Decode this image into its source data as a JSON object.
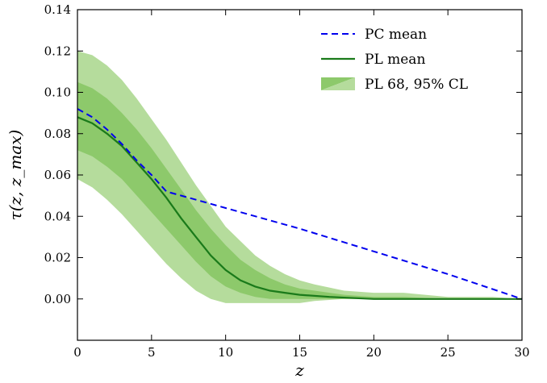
{
  "chart_data": {
    "type": "line",
    "xlabel": "z",
    "ylabel": "τ(z, z_max)",
    "xlim": [
      0,
      30
    ],
    "ylim": [
      -0.02,
      0.14
    ],
    "x_ticks": [
      "0",
      "5",
      "10",
      "15",
      "20",
      "25",
      "30"
    ],
    "y_ticks": [
      "0.00",
      "0.02",
      "0.04",
      "0.06",
      "0.08",
      "0.10",
      "0.12",
      "0.14"
    ],
    "legend_position": "top-right",
    "grid": false,
    "series": [
      {
        "name": "PC mean",
        "style": "dashed",
        "color": "#0000ee",
        "x": [
          0,
          1,
          2,
          3,
          4,
          5,
          6,
          7,
          8,
          10,
          15,
          20,
          25,
          30
        ],
        "y": [
          0.092,
          0.088,
          0.082,
          0.075,
          0.067,
          0.06,
          0.052,
          0.05,
          0.048,
          0.044,
          0.034,
          0.023,
          0.012,
          0.0
        ]
      },
      {
        "name": "PL mean",
        "style": "solid",
        "color": "#1a7a1a",
        "x": [
          0,
          1,
          2,
          3,
          4,
          5,
          6,
          7,
          8,
          9,
          10,
          11,
          12,
          13,
          14,
          15,
          17,
          20,
          25,
          30
        ],
        "y": [
          0.088,
          0.085,
          0.08,
          0.074,
          0.066,
          0.058,
          0.049,
          0.039,
          0.03,
          0.021,
          0.014,
          0.009,
          0.006,
          0.004,
          0.003,
          0.002,
          0.001,
          0.0,
          0.0,
          0.0
        ]
      }
    ],
    "bands": [
      {
        "name": "PL 68, 95% CL",
        "levels": [
          "68%",
          "95%"
        ],
        "colors": {
          "inner": "#8dc96b",
          "outer": "#b5dc9c"
        },
        "x": [
          0,
          1,
          2,
          3,
          4,
          5,
          6,
          7,
          8,
          9,
          10,
          11,
          12,
          13,
          14,
          15,
          16,
          18,
          20,
          22,
          25,
          28,
          30
        ],
        "outer_upper": [
          0.12,
          0.118,
          0.113,
          0.106,
          0.097,
          0.087,
          0.077,
          0.066,
          0.055,
          0.045,
          0.035,
          0.028,
          0.021,
          0.016,
          0.012,
          0.009,
          0.007,
          0.004,
          0.003,
          0.003,
          0.001,
          0.001,
          0.0
        ],
        "outer_lower": [
          0.058,
          0.054,
          0.048,
          0.041,
          0.033,
          0.025,
          0.017,
          0.01,
          0.004,
          0.0,
          -0.002,
          -0.002,
          -0.002,
          -0.002,
          -0.002,
          -0.002,
          -0.001,
          0.0,
          0.0,
          0.0,
          0.0,
          0.0,
          0.0
        ],
        "inner_upper": [
          0.105,
          0.102,
          0.097,
          0.09,
          0.082,
          0.073,
          0.063,
          0.053,
          0.043,
          0.034,
          0.026,
          0.019,
          0.014,
          0.01,
          0.007,
          0.005,
          0.004,
          0.002,
          0.001,
          0.001,
          0.0,
          0.0,
          0.0
        ],
        "inner_lower": [
          0.072,
          0.069,
          0.064,
          0.058,
          0.05,
          0.042,
          0.034,
          0.026,
          0.018,
          0.011,
          0.006,
          0.003,
          0.001,
          0.0,
          0.0,
          0.0,
          0.0,
          0.0,
          0.0,
          0.0,
          0.0,
          0.0,
          0.0
        ]
      }
    ]
  }
}
